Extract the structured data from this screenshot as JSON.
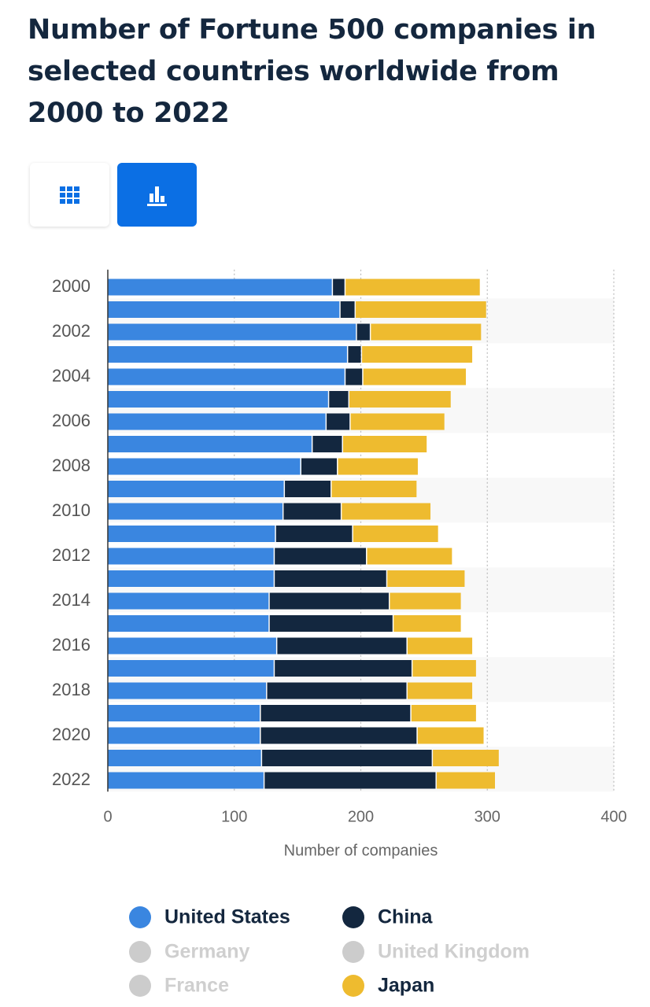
{
  "chart_data": {
    "type": "stacked_bar_horizontal",
    "title": "Number of Fortune 500 companies in selected countries worldwide from 2000 to 2022",
    "x_label": "Number of companies",
    "categories": [
      "2000",
      null,
      "2002",
      null,
      "2004",
      null,
      "2006",
      null,
      "2008",
      null,
      "2010",
      null,
      "2012",
      null,
      "2014",
      null,
      "2016",
      null,
      "2018",
      null,
      "2020",
      null,
      "2022"
    ],
    "series": [
      {
        "name": "United States",
        "color": "#3a86e0",
        "values": [
          178,
          184,
          197,
          190,
          188,
          175,
          173,
          162,
          153,
          140,
          139,
          133,
          132,
          132,
          128,
          128,
          134,
          132,
          126,
          121,
          121,
          122,
          124
        ]
      },
      {
        "name": "China",
        "color": "#13273f",
        "values": [
          10,
          12,
          11,
          11,
          14,
          16,
          19,
          24,
          29,
          37,
          46,
          61,
          73,
          89,
          95,
          98,
          103,
          109,
          111,
          119,
          124,
          135,
          136
        ]
      },
      {
        "name": "Japan",
        "color": "#eebb2f",
        "values": [
          107,
          104,
          88,
          88,
          82,
          81,
          75,
          67,
          64,
          68,
          71,
          68,
          68,
          62,
          57,
          54,
          52,
          51,
          52,
          52,
          53,
          53,
          47
        ]
      }
    ],
    "inactive_series": [
      {
        "name": "Germany",
        "color": "#cccccc"
      },
      {
        "name": "United Kingdom",
        "color": "#cccccc"
      },
      {
        "name": "France",
        "color": "#cccccc"
      }
    ],
    "xlim": [
      0,
      400
    ],
    "xticks": [
      0,
      100,
      200,
      300,
      400
    ],
    "grid": true
  }
}
